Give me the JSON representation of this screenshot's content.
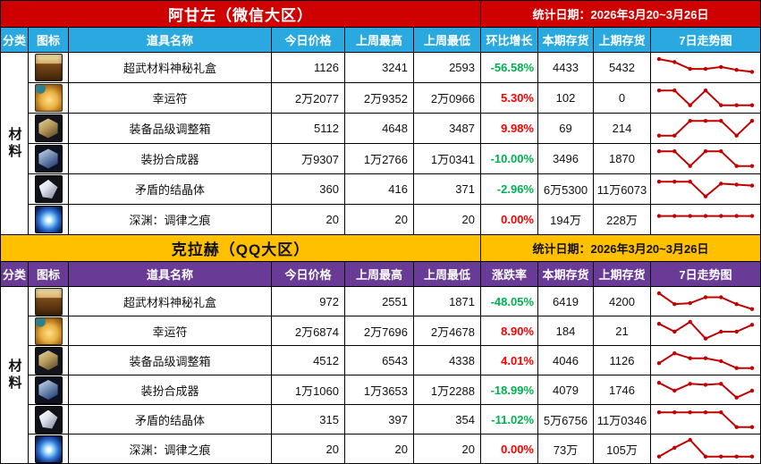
{
  "colors": {
    "change_up": "#FF0000",
    "change_down": "#00B050",
    "sparkline": "#C00000"
  },
  "tables": [
    {
      "title": "阿甘左（微信大区）",
      "stat_date": "统计日期：2026年3月20~3月26日",
      "category": "材料",
      "theme": {
        "title_bg": "#CE0000",
        "title_fg": "#FFFFFF",
        "header_bg": "#29A9E0",
        "header_fg": "#FFFFFF"
      },
      "columns": [
        "分类",
        "图标",
        "道具名称",
        "今日价格",
        "上周最高",
        "上周最低",
        "环比增长",
        "本期存货",
        "上期存货",
        "7日走势图"
      ],
      "rows": [
        {
          "name": "超武材料神秘礼盒",
          "icon": "mystery-box-icon",
          "today": "1126",
          "week_high": "3241",
          "week_low": "2593",
          "change": "-56.58%",
          "stock_now": "4433",
          "stock_prev": "5432",
          "trend": [
            9.5,
            8,
            4.5,
            4.5,
            5.5,
            4,
            3
          ]
        },
        {
          "name": "幸运符",
          "icon": "lucky-charm-icon",
          "today": "2万2077",
          "week_high": "2万9352",
          "week_low": "2万0966",
          "change": "5.30%",
          "stock_now": "102",
          "stock_prev": "0",
          "trend": [
            9,
            9,
            1.5,
            9,
            1.5,
            1.5,
            1.5
          ]
        },
        {
          "name": "装备品级调整箱",
          "icon": "grade-box-icon",
          "today": "5112",
          "week_high": "4648",
          "week_low": "3487",
          "change": "9.98%",
          "stock_now": "69",
          "stock_prev": "214",
          "trend": [
            1.5,
            1.5,
            9,
            9,
            9,
            1.5,
            9
          ]
        },
        {
          "name": "装扮合成器",
          "icon": "synth-box-icon",
          "today": "万9307",
          "week_high": "1万2766",
          "week_low": "1万0341",
          "change": "-10.00%",
          "stock_now": "3496",
          "stock_prev": "1870",
          "trend": [
            9,
            9,
            1.5,
            9,
            9,
            1.5,
            1.5
          ]
        },
        {
          "name": "矛盾的结晶体",
          "icon": "paradox-crystal-icon",
          "today": "360",
          "week_high": "416",
          "week_low": "371",
          "change": "-2.96%",
          "stock_now": "6万5300",
          "stock_prev": "11万6073",
          "trend": [
            9,
            9,
            9,
            1.5,
            8,
            7.5,
            7
          ]
        },
        {
          "name": "深渊：调律之痕",
          "icon": "abyss-tune-icon",
          "today": "20",
          "week_high": "20",
          "week_low": "20",
          "change": "0.00%",
          "stock_now": "194万",
          "stock_prev": "228万",
          "trend": [
            7,
            7,
            7,
            7,
            7,
            7,
            7
          ]
        }
      ]
    },
    {
      "title": "克拉赫（QQ大区）",
      "stat_date": "统计日期：2026年3月20~3月26日",
      "category": "材料",
      "theme": {
        "title_bg": "#FFC000",
        "title_fg": "#111111",
        "header_bg": "#6A3B96",
        "header_fg": "#FFFFFF"
      },
      "columns": [
        "分类",
        "图标",
        "道具名称",
        "今日价格",
        "上周最高",
        "上周最低",
        "涨跌率",
        "本期存货",
        "上期存货",
        "7日走势图"
      ],
      "rows": [
        {
          "name": "超武材料神秘礼盒",
          "icon": "mystery-box-icon",
          "today": "972",
          "week_high": "2551",
          "week_low": "1871",
          "change": "-48.05%",
          "stock_now": "6419",
          "stock_prev": "4200",
          "trend": [
            9.5,
            4,
            4.5,
            7.5,
            7.5,
            4,
            1.5
          ]
        },
        {
          "name": "幸运符",
          "icon": "lucky-charm-icon",
          "today": "2万6874",
          "week_high": "2万7696",
          "week_low": "2万4678",
          "change": "8.90%",
          "stock_now": "184",
          "stock_prev": "21",
          "trend": [
            9,
            5,
            10,
            1.5,
            5,
            5,
            8.5
          ]
        },
        {
          "name": "装备品级调整箱",
          "icon": "grade-box-icon",
          "today": "4512",
          "week_high": "6543",
          "week_low": "4338",
          "change": "4.01%",
          "stock_now": "4046",
          "stock_prev": "1126",
          "trend": [
            4,
            9,
            6.5,
            6.5,
            5,
            1.5,
            1.5
          ]
        },
        {
          "name": "装扮合成器",
          "icon": "synth-box-icon",
          "today": "1万1060",
          "week_high": "1万3653",
          "week_low": "1万2288",
          "change": "-18.99%",
          "stock_now": "4079",
          "stock_prev": "1746",
          "trend": [
            9,
            5,
            8.5,
            8,
            8.5,
            1.5,
            5
          ]
        },
        {
          "name": "矛盾的结晶体",
          "icon": "paradox-crystal-icon",
          "today": "315",
          "week_high": "397",
          "week_low": "354",
          "change": "-11.02%",
          "stock_now": "5万6756",
          "stock_prev": "11万0346",
          "trend": [
            9,
            9,
            9,
            9,
            9,
            1.5,
            1.5
          ]
        },
        {
          "name": "深渊：调律之痕",
          "icon": "abyss-tune-icon",
          "today": "20",
          "week_high": "20",
          "week_low": "20",
          "change": "0.00%",
          "stock_now": "73万",
          "stock_prev": "105万",
          "trend": [
            1.5,
            6,
            10,
            1.5,
            1.5,
            1.5,
            1.5
          ]
        }
      ]
    }
  ]
}
